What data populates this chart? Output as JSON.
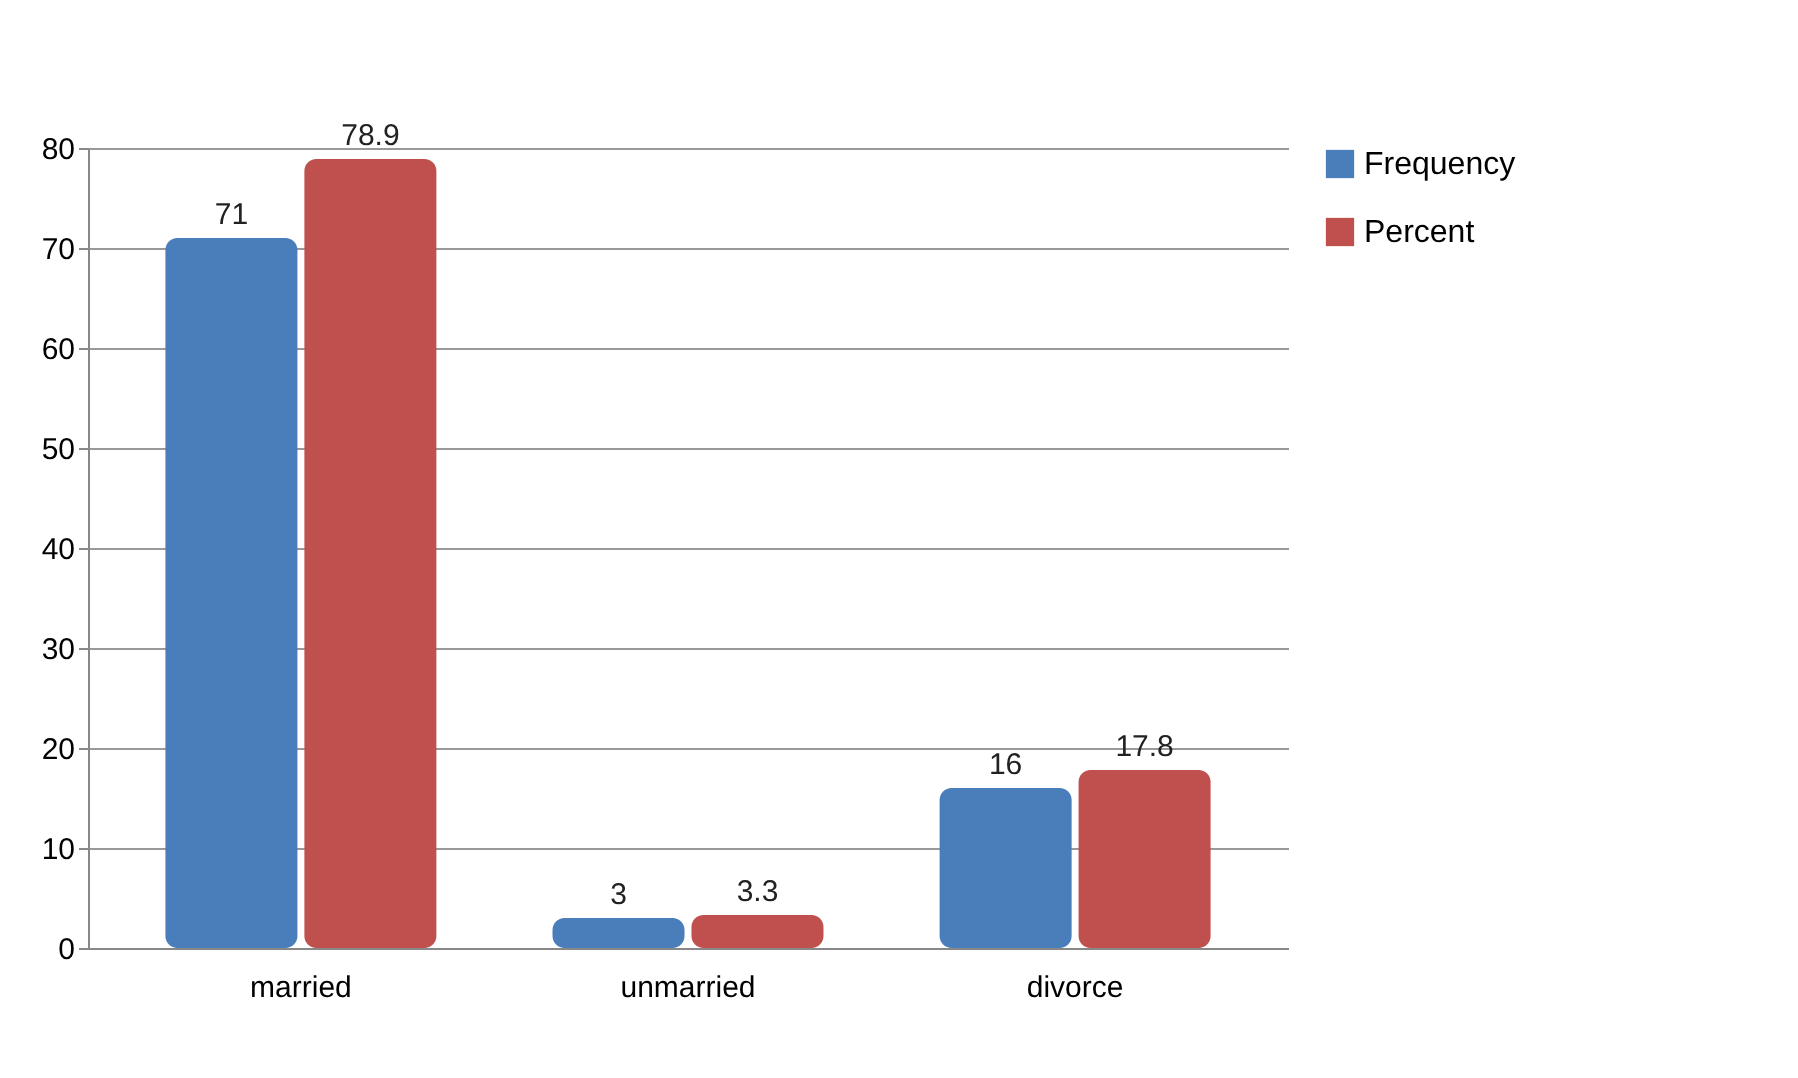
{
  "chart_data": {
    "type": "bar",
    "categories": [
      "married",
      "unmarried",
      "divorce"
    ],
    "series": [
      {
        "name": "Frequency",
        "color": "#4a7ebb",
        "values": [
          71,
          3,
          16
        ]
      },
      {
        "name": "Percent",
        "color": "#c0504d",
        "values": [
          78.9,
          3.3,
          17.8
        ]
      }
    ],
    "ylim": [
      0,
      80
    ],
    "yticks": [
      0,
      10,
      20,
      30,
      40,
      50,
      60,
      70,
      80
    ],
    "grid": "y",
    "legend": "right",
    "data_labels": true
  }
}
